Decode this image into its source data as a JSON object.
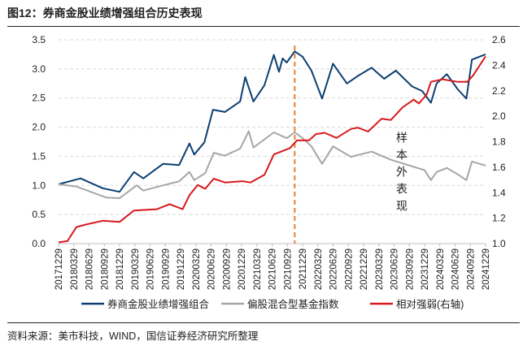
{
  "title": "图12：券商金股业绩增强组合历史表现",
  "source": "资料来源：美市科技，WIND，国信证券经济研究所整理",
  "chart_data": {
    "type": "line",
    "annotation": "样本外表现",
    "annotation_date": "2021-11-12",
    "colors": {
      "portfolio": "#0d3f73",
      "index": "#a6a6a6",
      "relative": "#d7191c",
      "divider": "#ed7d31",
      "grid": "#d9d9d9"
    },
    "grid": true,
    "legend_position": "bottom",
    "y_left": {
      "range": [
        0,
        3.5
      ],
      "ticks": [
        "0.0",
        "0.5",
        "1.0",
        "1.5",
        "2.0",
        "2.5",
        "3.0",
        "3.5"
      ]
    },
    "y_right": {
      "range": [
        1.0,
        2.6
      ],
      "ticks": [
        "1.0",
        "1.2",
        "1.4",
        "1.6",
        "1.8",
        "2.0",
        "2.2",
        "2.4",
        "2.6"
      ]
    },
    "x_ticks": [
      "20171229",
      "20180329",
      "20180629",
      "20180929",
      "20181229",
      "20190329",
      "20190629",
      "20190929",
      "20191229",
      "20200329",
      "20200629",
      "20200929",
      "20201229",
      "20210329",
      "20210629",
      "20210929",
      "20211229",
      "20220329",
      "20220629",
      "20220929",
      "20221229",
      "20230329",
      "20230629",
      "20230929",
      "20231229",
      "20240329",
      "20240629",
      "20240929",
      "20241229"
    ],
    "series": [
      {
        "name": "券商金股业绩增强组合",
        "axis": "left",
        "color_key": "portfolio",
        "points": [
          [
            "2017-12-29",
            1.02
          ],
          [
            "2018-05-10",
            1.12
          ],
          [
            "2018-09-20",
            0.95
          ],
          [
            "2018-12-29",
            0.89
          ],
          [
            "2019-03-25",
            1.23
          ],
          [
            "2019-05-20",
            1.12
          ],
          [
            "2019-09-15",
            1.37
          ],
          [
            "2019-12-20",
            1.35
          ],
          [
            "2020-02-20",
            1.72
          ],
          [
            "2020-03-20",
            1.53
          ],
          [
            "2020-05-20",
            1.74
          ],
          [
            "2020-07-10",
            2.3
          ],
          [
            "2020-09-20",
            2.26
          ],
          [
            "2020-12-20",
            2.44
          ],
          [
            "2021-01-20",
            2.86
          ],
          [
            "2021-03-10",
            2.44
          ],
          [
            "2021-05-15",
            2.72
          ],
          [
            "2021-07-10",
            3.24
          ],
          [
            "2021-08-10",
            2.95
          ],
          [
            "2021-09-01",
            3.18
          ],
          [
            "2021-09-25",
            3.11
          ],
          [
            "2021-11-12",
            3.3
          ],
          [
            "2021-12-29",
            3.21
          ],
          [
            "2022-02-20",
            2.97
          ],
          [
            "2022-04-25",
            2.49
          ],
          [
            "2022-06-29",
            3.09
          ],
          [
            "2022-09-20",
            2.75
          ],
          [
            "2022-11-25",
            2.88
          ],
          [
            "2023-02-15",
            3.02
          ],
          [
            "2023-05-01",
            2.83
          ],
          [
            "2023-07-10",
            2.97
          ],
          [
            "2023-10-15",
            2.7
          ],
          [
            "2023-12-15",
            2.62
          ],
          [
            "2024-02-05",
            2.42
          ],
          [
            "2024-03-10",
            2.75
          ],
          [
            "2024-05-10",
            2.91
          ],
          [
            "2024-07-15",
            2.65
          ],
          [
            "2024-09-05",
            2.49
          ],
          [
            "2024-10-08",
            3.16
          ],
          [
            "2024-12-29",
            3.25
          ]
        ]
      },
      {
        "name": "偏股混合型基金指数",
        "axis": "left",
        "color_key": "index",
        "points": [
          [
            "2017-12-29",
            1.02
          ],
          [
            "2018-04-15",
            0.98
          ],
          [
            "2018-10-10",
            0.79
          ],
          [
            "2018-12-29",
            0.78
          ],
          [
            "2019-04-10",
            1.0
          ],
          [
            "2019-05-20",
            0.91
          ],
          [
            "2019-09-15",
            1.0
          ],
          [
            "2019-12-20",
            1.07
          ],
          [
            "2020-02-20",
            1.23
          ],
          [
            "2020-03-20",
            1.09
          ],
          [
            "2020-05-25",
            1.21
          ],
          [
            "2020-07-15",
            1.56
          ],
          [
            "2020-09-20",
            1.51
          ],
          [
            "2020-12-20",
            1.63
          ],
          [
            "2021-02-10",
            1.93
          ],
          [
            "2021-03-10",
            1.65
          ],
          [
            "2021-07-10",
            1.91
          ],
          [
            "2021-09-25",
            1.81
          ],
          [
            "2021-11-12",
            1.91
          ],
          [
            "2021-12-29",
            1.81
          ],
          [
            "2022-02-20",
            1.67
          ],
          [
            "2022-04-25",
            1.37
          ],
          [
            "2022-06-29",
            1.67
          ],
          [
            "2022-10-15",
            1.49
          ],
          [
            "2023-02-15",
            1.58
          ],
          [
            "2023-06-10",
            1.44
          ],
          [
            "2023-09-20",
            1.35
          ],
          [
            "2023-12-29",
            1.26
          ],
          [
            "2024-02-05",
            1.09
          ],
          [
            "2024-03-10",
            1.23
          ],
          [
            "2024-05-10",
            1.3
          ],
          [
            "2024-07-15",
            1.19
          ],
          [
            "2024-09-05",
            1.09
          ],
          [
            "2024-10-08",
            1.41
          ],
          [
            "2024-12-29",
            1.34
          ]
        ]
      },
      {
        "name": "相对强弱(右轴)",
        "axis": "right",
        "color_key": "relative",
        "points": [
          [
            "2017-12-29",
            1.01
          ],
          [
            "2018-02-20",
            1.02
          ],
          [
            "2018-04-15",
            1.13
          ],
          [
            "2018-06-10",
            1.15
          ],
          [
            "2018-09-20",
            1.18
          ],
          [
            "2018-12-29",
            1.17
          ],
          [
            "2019-03-25",
            1.26
          ],
          [
            "2019-08-10",
            1.27
          ],
          [
            "2019-10-25",
            1.31
          ],
          [
            "2020-01-10",
            1.27
          ],
          [
            "2020-02-20",
            1.38
          ],
          [
            "2020-04-10",
            1.46
          ],
          [
            "2020-05-25",
            1.43
          ],
          [
            "2020-07-15",
            1.51
          ],
          [
            "2020-09-20",
            1.48
          ],
          [
            "2021-01-05",
            1.49
          ],
          [
            "2021-02-20",
            1.48
          ],
          [
            "2021-05-15",
            1.54
          ],
          [
            "2021-07-10",
            1.7
          ],
          [
            "2021-10-15",
            1.75
          ],
          [
            "2021-11-25",
            1.81
          ],
          [
            "2022-02-05",
            1.81
          ],
          [
            "2022-03-20",
            1.86
          ],
          [
            "2022-05-10",
            1.87
          ],
          [
            "2022-07-20",
            1.83
          ],
          [
            "2022-10-15",
            1.9
          ],
          [
            "2022-11-25",
            1.91
          ],
          [
            "2023-01-25",
            1.88
          ],
          [
            "2023-04-15",
            1.98
          ],
          [
            "2023-06-10",
            1.97
          ],
          [
            "2023-08-20",
            2.07
          ],
          [
            "2023-10-25",
            2.13
          ],
          [
            "2023-11-25",
            2.1
          ],
          [
            "2024-01-10",
            2.17
          ],
          [
            "2024-02-05",
            2.27
          ],
          [
            "2024-04-15",
            2.29
          ],
          [
            "2024-07-15",
            2.27
          ],
          [
            "2024-09-10",
            2.27
          ],
          [
            "2024-10-15",
            2.32
          ],
          [
            "2024-12-29",
            2.47
          ]
        ]
      }
    ]
  }
}
